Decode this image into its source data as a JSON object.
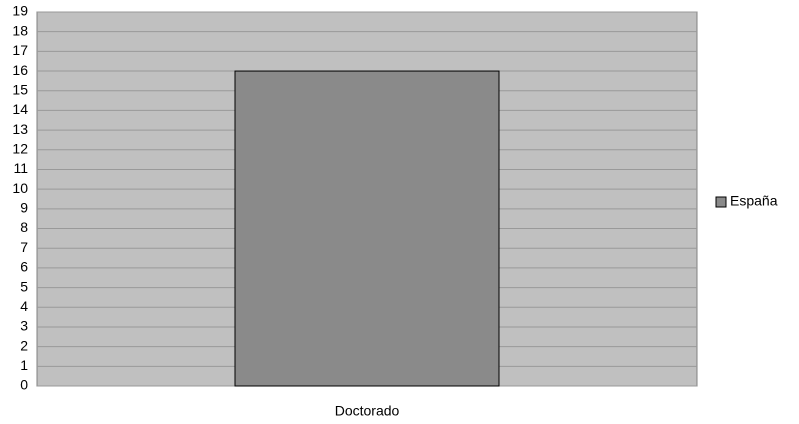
{
  "chart_data": {
    "type": "bar",
    "categories": [
      "Doctorado"
    ],
    "series": [
      {
        "name": "España",
        "color": "#8a8a8a",
        "values": [
          16
        ]
      }
    ],
    "ylim": [
      0,
      19
    ],
    "yticks": [
      0,
      1,
      2,
      3,
      4,
      5,
      6,
      7,
      8,
      9,
      10,
      11,
      12,
      13,
      14,
      15,
      16,
      17,
      18,
      19
    ],
    "grid": true,
    "legend": "right"
  }
}
